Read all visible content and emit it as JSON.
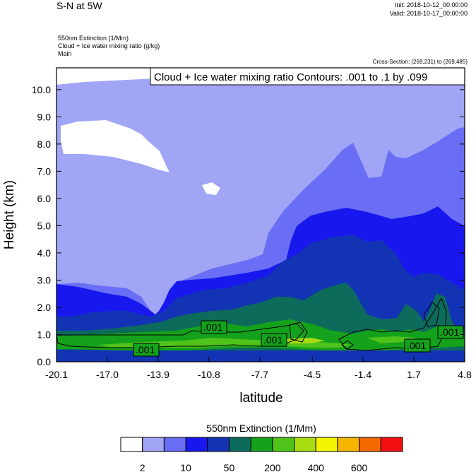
{
  "header": {
    "title": "S-N at 5W",
    "init": "Init: 2018-10-12_00:00:00",
    "valid": "Valid: 2018-10-17_00:00:00",
    "field1": "550nm Extinction   (1/Mm)",
    "field2": "Cloud + Ice water mixing ratio   (g/kg)",
    "field3": "Main",
    "cross_section": "Cross-Section: (269,231) to (269,485)"
  },
  "chart_data": {
    "type": "heatmap",
    "title": "Cloud + Ice water mixing ratio Contours: .001 to .1 by .099",
    "xlabel": "latitude",
    "ylabel": "Height (km)",
    "xlim": [
      -20.1,
      4.8
    ],
    "ylim": [
      0.0,
      10.8
    ],
    "x_ticks": [
      "-20.1",
      "-17.0",
      "-13.9",
      "-10.8",
      "-7.7",
      "-4.5",
      "-1.4",
      "1.7",
      "4.8"
    ],
    "y_ticks": [
      "0.0",
      "1.0",
      "2.0",
      "3.0",
      "4.0",
      "5.0",
      "6.0",
      "7.0",
      "8.0",
      "9.0",
      "10.0"
    ],
    "contour_labels": [
      ".001",
      ".001",
      ".001",
      ".001",
      ".001"
    ],
    "colorbar": {
      "title": "550nm Extinction  (1/Mm)",
      "tick_labels": [
        "2",
        "10",
        "50",
        "200",
        "400",
        "600"
      ],
      "colors": [
        "#ffffff",
        "#a0a6f5",
        "#6a6ef5",
        "#1818ee",
        "#1234b4",
        "#0d6b5c",
        "#14a11b",
        "#4fc31a",
        "#a8db12",
        "#f4f400",
        "#f5b600",
        "#f56a00",
        "#f21010"
      ]
    },
    "grid": false
  }
}
